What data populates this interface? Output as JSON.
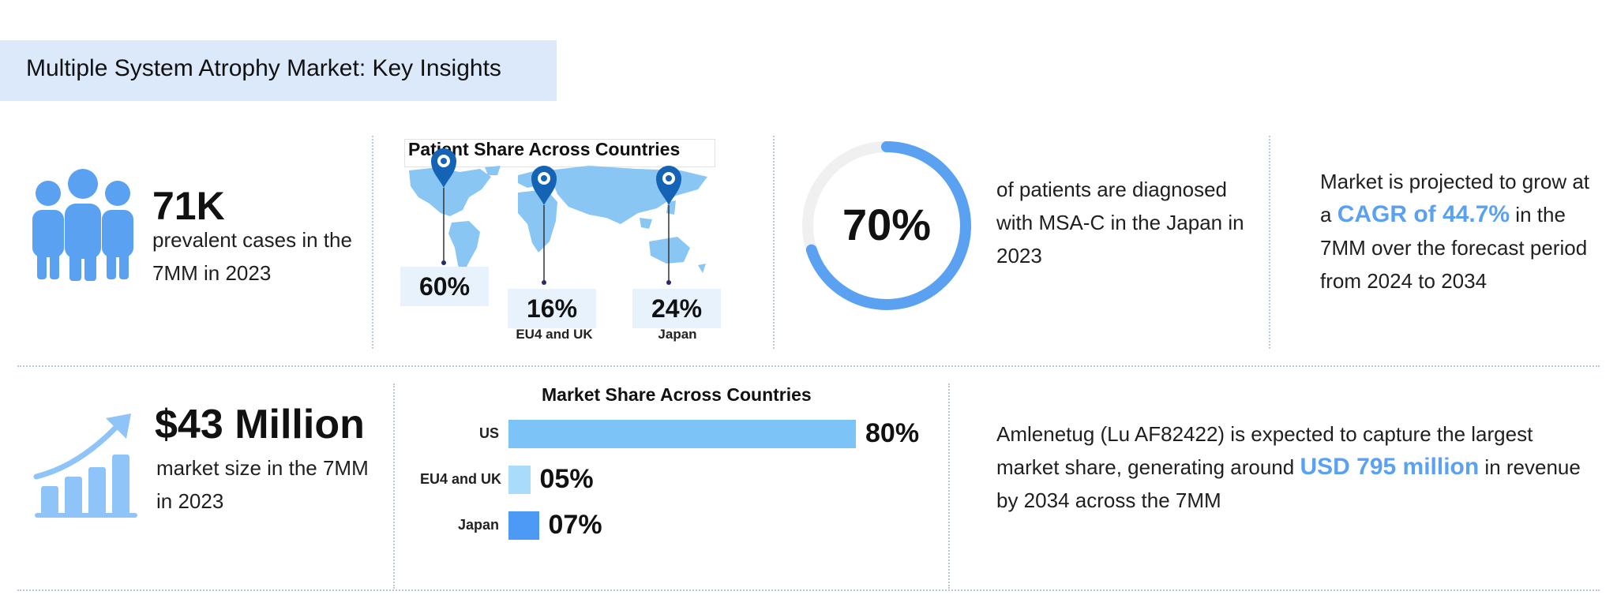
{
  "header": {
    "title": "Multiple System Atrophy Market: Key Insights"
  },
  "prevalent": {
    "value": "71K",
    "text": "prevalent cases in the 7MM in 2023",
    "icon": "people-group-icon"
  },
  "patient_share": {
    "title": "Patient Share Across Countries",
    "regions": [
      {
        "value": "60%",
        "label": "",
        "share": 60
      },
      {
        "value": "16%",
        "label": "EU4 and UK",
        "share": 16
      },
      {
        "value": "24%",
        "label": "Japan",
        "share": 24
      }
    ],
    "pin_color": "#1563b4",
    "map_color": "#8ac6f4"
  },
  "diagnosis": {
    "value": "70%",
    "fraction": 0.7,
    "text": "of patients are diagnosed with MSA-C in the Japan in 2023",
    "ring_color": "#5aa1f2"
  },
  "growth": {
    "pre": "Market is projected to grow at a ",
    "cagr": "CAGR of 44.7%",
    "post": " in the 7MM over the forecast period from 2024 to 2034"
  },
  "market_size": {
    "value": "$43 Million",
    "text": "market size in the 7MM in 2023",
    "icon": "growth-chart-icon"
  },
  "chart_data": {
    "type": "bar",
    "title": "Market Share Across Countries",
    "categories": [
      "US",
      "EU4 and UK",
      "Japan"
    ],
    "values": [
      80,
      5,
      7
    ],
    "value_labels": [
      "80%",
      "05%",
      "07%"
    ],
    "colors": [
      "#7cc4f8",
      "#a9dcfb",
      "#4d9af5"
    ],
    "orientation": "horizontal"
  },
  "revenue": {
    "pre": "Amlenetug (Lu AF82422) is expected to capture the largest market share, generating around ",
    "highlight": "USD 795 million",
    "post": " in revenue by 2034 across the 7MM"
  }
}
